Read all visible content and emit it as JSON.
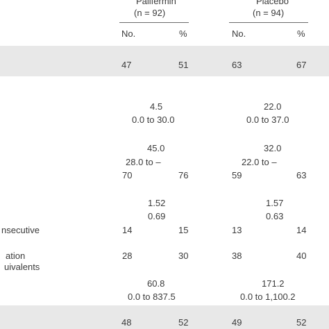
{
  "header": {
    "palifermin": {
      "name": "Palifermin",
      "n": "(n = 92)"
    },
    "placebo": {
      "name": "Placebo",
      "n": "(n = 94)"
    },
    "col_no": "No.",
    "col_pct": "%"
  },
  "rows": {
    "r1": {
      "pal_no": "47",
      "pal_pct": "51",
      "pla_no": "63",
      "pla_pct": "67"
    },
    "r2": {
      "pal_med": "4.5",
      "pal_range": "0.0 to 30.0",
      "pla_med": "22.0",
      "pla_range": "0.0 to 37.0"
    },
    "r3": {
      "pal_med": "45.0",
      "pal_range_a": "28.0 to –",
      "pal_range_b": "70",
      "pal_pct": "76",
      "pla_med": "32.0",
      "pla_range_a": "22.0 to –",
      "pla_range_b": "59",
      "pla_pct": "63"
    },
    "r4": {
      "pal_a": "1.52",
      "pal_b": "0.69",
      "pla_a": "1.57",
      "pla_b": "0.63"
    },
    "r5": {
      "label": "nsecutive",
      "pal_no": "14",
      "pal_pct": "15",
      "pla_no": "13",
      "pla_pct": "14"
    },
    "r6": {
      "label_a": "ation",
      "label_b": "uivalents",
      "pal_no": "28",
      "pal_pct": "30",
      "pla_no": "38",
      "pla_pct": "40"
    },
    "r7": {
      "pal_med": "60.8",
      "pal_range": "0.0 to 837.5",
      "pla_med": "171.2",
      "pla_range": "0.0 to 1,100.2"
    },
    "r8": {
      "pal_no": "48",
      "pal_pct": "52",
      "pla_no": "49",
      "pla_pct": "52"
    }
  },
  "colors": {
    "band": "#e8e8e8",
    "text": "#3a3a3a",
    "rule": "#6a6a6a"
  }
}
